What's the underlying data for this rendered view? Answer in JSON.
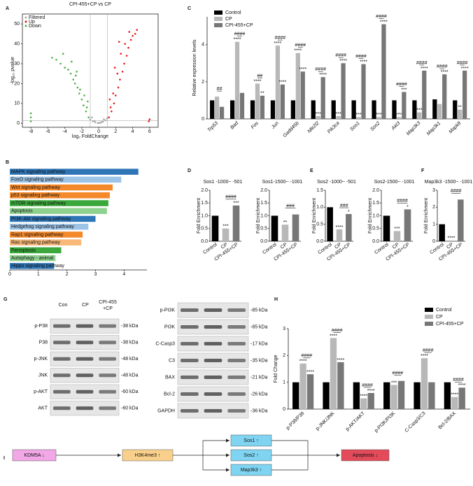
{
  "panel_labels": [
    "A",
    "B",
    "C",
    "D",
    "E",
    "F",
    "G",
    "H",
    "I"
  ],
  "chart_data": [
    {
      "type": "scatter",
      "title": "CPI-455+CP vs CP",
      "xlabel": "log₂ FoldChange",
      "ylabel": "-log₁₀ pvalue",
      "xlim": [
        -9,
        7
      ],
      "ylim": [
        -2,
        55
      ],
      "xticks": [
        -8,
        -6,
        -4,
        -2,
        0,
        2,
        4,
        6
      ],
      "yticks": [
        0,
        10,
        20,
        30,
        40,
        50
      ],
      "vlines": [
        -1,
        1
      ],
      "hline": 1.3,
      "legend": "upper left",
      "series": [
        {
          "name": "Filtered",
          "color": "#aaaaaa",
          "x": [
            -1,
            -0.7,
            -0.4,
            -0.1,
            0.2,
            0.5,
            0.8,
            1,
            -0.5,
            0.3,
            0,
            -0.8,
            0.6
          ],
          "y": [
            2,
            1,
            0.5,
            0.2,
            0.3,
            0.8,
            1.5,
            2.5,
            1.2,
            0.6,
            0.1,
            3,
            2
          ]
        },
        {
          "name": "Up",
          "color": "#e41a1c",
          "x": [
            1.2,
            1.5,
            1.8,
            2.0,
            2.3,
            2.5,
            2.8,
            3.0,
            3.3,
            3.5,
            3.8,
            4.0,
            4.3,
            4.5,
            1.4,
            1.7,
            2.2,
            2.6,
            3.1,
            3.6,
            1.3,
            1.9,
            2.4,
            5.9,
            6.0
          ],
          "y": [
            3,
            6,
            10,
            14,
            18,
            22,
            26,
            30,
            34,
            38,
            42,
            44,
            45,
            47,
            8,
            15,
            25,
            35,
            40,
            46,
            12,
            28,
            41,
            1,
            2
          ]
        },
        {
          "name": "Down",
          "color": "#4daf4a",
          "x": [
            -1.2,
            -1.5,
            -1.8,
            -2.0,
            -2.3,
            -2.5,
            -2.8,
            -3.0,
            -3.3,
            -3.6,
            -4.0,
            -4.5,
            -5.0,
            -5.5,
            -1.4,
            -1.7,
            -2.2,
            -2.7,
            -3.2,
            -4.2,
            -8,
            -8,
            -8,
            -1.3,
            -2.6
          ],
          "y": [
            3,
            6,
            9,
            12,
            15,
            18,
            20,
            22,
            25,
            27,
            28,
            30,
            32,
            33,
            8,
            14,
            17,
            24,
            31,
            35,
            1,
            3,
            5,
            11,
            26
          ]
        }
      ]
    },
    {
      "type": "barh",
      "categories": [
        "MAPK signaling pathway",
        "FoxO signaling pathway",
        "Wnt signaling pathway",
        "p53 signaling pathway",
        "mTOR signaling pathway",
        "Apoptosis",
        "PI3K-Akt signaling pathway",
        "Hedgehog signaling pathway",
        "Rap1 signaling pathway",
        "Ras signaling pathway",
        "Ferroptosis",
        "Autophagy - animal",
        "Hippo signaling pathway"
      ],
      "values": [
        4.5,
        3.9,
        3.6,
        3.5,
        3.45,
        3.4,
        3.0,
        2.75,
        2.55,
        2.5,
        1.8,
        1.6,
        1.55
      ],
      "colors": [
        "#2e75b6",
        "#9dc3e6",
        "#f4892b",
        "#f4892b",
        "#3aa83a",
        "#8fd18f",
        "#2e75b6",
        "#9dc3e6",
        "#f4892b",
        "#f8b878",
        "#3aa83a",
        "#8fd18f",
        "#2e75b6"
      ],
      "xlim": [
        0,
        4.8
      ],
      "xticks": [
        0,
        1,
        2,
        3,
        4
      ]
    },
    {
      "type": "grouped_bar",
      "ylabel": "Relative expression levels",
      "ylim": [
        0,
        5.5
      ],
      "yticks": [
        0,
        2,
        4
      ],
      "legend": "upper left",
      "italic_categories": true,
      "categories": [
        "Trp53",
        "Bad",
        "Fos",
        "Jun",
        "Gadd45b",
        "Nfe2l2",
        "Pik3ca",
        "Sos1",
        "Sos2",
        "Akt3",
        "Map3k3",
        "Map3k1",
        "Mapk8"
      ],
      "series": [
        {
          "name": "Control",
          "color": "#000000",
          "values": [
            1,
            1,
            1,
            1,
            1,
            1,
            1,
            1,
            1,
            1,
            1,
            1.05,
            1
          ],
          "annotations": [
            null,
            null,
            null,
            null,
            null,
            null,
            null,
            null,
            null,
            null,
            null,
            null,
            null
          ]
        },
        {
          "name": "CP",
          "color": "#b8b8b8",
          "values": [
            1.2,
            4.15,
            1.9,
            3.95,
            3.55,
            0.15,
            0.15,
            0.1,
            0.1,
            0.1,
            0.35,
            0.8,
            0.5
          ],
          "annotations": [
            null,
            "****",
            "****",
            "****",
            "****",
            "***",
            "***",
            "***",
            "***",
            "****",
            "***",
            null,
            "**"
          ]
        },
        {
          "name": "CPI-455+CP",
          "color": "#777777",
          "values": [
            0.65,
            1.4,
            1.25,
            1.85,
            2.55,
            2.25,
            3.0,
            2.95,
            5.1,
            1.45,
            2.6,
            2.4,
            2.6
          ],
          "annotations": [
            null,
            null,
            "**",
            "****",
            "****",
            "****",
            "****",
            "****",
            "****",
            "***",
            "****",
            "****",
            "****"
          ]
        }
      ],
      "pair_annotations": [
        "##",
        "####",
        "##",
        "####",
        "####",
        "####",
        "####",
        "####",
        "####",
        "####",
        "####",
        "####",
        "####"
      ]
    },
    {
      "type": "bar",
      "title": "Sos1 -1000~ -501",
      "ylabel": "Fold Enrichment",
      "categories": [
        "Control",
        "CP",
        "CPI-455+CP"
      ],
      "values": [
        1,
        0.5,
        1.4
      ],
      "colors": [
        "#000000",
        "#b8b8b8",
        "#777777"
      ],
      "annotations": [
        null,
        "***",
        "***"
      ],
      "bracket": "####",
      "ylim": [
        0,
        2
      ],
      "yticks": [
        {
          "value": 0,
          "label": "0.0"
        },
        0.5,
        {
          "value": 1,
          "label": "1.0"
        },
        1.5,
        {
          "value": 2,
          "label": "2.0"
        }
      ]
    },
    {
      "type": "bar",
      "title": "Sos1-1500~ -1001",
      "ylabel": "Fold Enrichment",
      "categories": [
        "Control",
        "CP",
        "CPI-455+CP"
      ],
      "values": [
        1,
        0.65,
        1.05
      ],
      "colors": [
        "#000000",
        "#b8b8b8",
        "#777777"
      ],
      "annotations": [
        null,
        "**",
        null
      ],
      "bracket": "###",
      "ylim": [
        0,
        2
      ],
      "yticks": [
        {
          "value": 0,
          "label": "0.0"
        },
        0.5,
        {
          "value": 1,
          "label": "1.0"
        },
        1.5,
        {
          "value": 2,
          "label": "2.0"
        }
      ]
    },
    {
      "type": "bar",
      "title": "Sos2 -1000~ -501",
      "ylabel": "Fold Enrichment",
      "categories": [
        "Control",
        "CP",
        "CPI-455+CP"
      ],
      "values": [
        1,
        0.35,
        0.8
      ],
      "colors": [
        "#000000",
        "#b8b8b8",
        "#777777"
      ],
      "annotations": [
        null,
        "****",
        "*"
      ],
      "bracket": "###",
      "ylim": [
        0,
        1.5
      ],
      "yticks": [
        {
          "value": 0,
          "label": "0.0"
        },
        0.5,
        {
          "value": 1,
          "label": "1.0"
        },
        1.5
      ]
    },
    {
      "type": "bar",
      "title": "Sos2-1500~ -1001",
      "ylabel": "Fold Enrichment",
      "categories": [
        "Control",
        "CP",
        "CPI-455+CP"
      ],
      "values": [
        1,
        0.4,
        1.25
      ],
      "colors": [
        "#000000",
        "#b8b8b8",
        "#777777"
      ],
      "annotations": [
        null,
        "***",
        "*"
      ],
      "bracket": "####",
      "ylim": [
        0,
        2
      ],
      "yticks": [
        {
          "value": 0,
          "label": "0.0"
        },
        0.5,
        {
          "value": 1,
          "label": "1.0"
        },
        1.5,
        {
          "value": 2,
          "label": "2.0"
        }
      ]
    },
    {
      "type": "bar",
      "title": "Map3k3 -1500~ -1001",
      "ylabel": "Fold Enrichment",
      "categories": [
        "Control",
        "CP",
        "CPI-455+CP"
      ],
      "values": [
        1,
        0.05,
        2.45
      ],
      "colors": [
        "#000000",
        "#b8b8b8",
        "#777777"
      ],
      "annotations": [
        null,
        "****",
        null
      ],
      "bracket": "####",
      "ylim": [
        0,
        3
      ],
      "yticks": [
        0,
        1,
        2,
        3
      ]
    },
    {
      "type": "grouped_bar",
      "ylabel": "Fold Change",
      "ylim": [
        0,
        3
      ],
      "yticks": [
        0,
        1,
        2,
        3
      ],
      "legend": "upper right",
      "italic_categories": false,
      "categories": [
        "p-P38/P38",
        "p-JNK/JNK",
        "p-AKT/AKT",
        "p-PI3K/PI3K",
        "C-Casp3/C3",
        "Bcl-2/BAX"
      ],
      "series": [
        {
          "name": "Control",
          "color": "#000000",
          "values": [
            1,
            1,
            1,
            1,
            1,
            1
          ],
          "annotations": [
            null,
            null,
            null,
            null,
            null,
            null
          ]
        },
        {
          "name": "CP",
          "color": "#b8b8b8",
          "values": [
            1.7,
            2.65,
            0.4,
            0.9,
            1.9,
            0.45
          ],
          "annotations": [
            "****",
            "****",
            "****",
            "***",
            "****",
            "****"
          ]
        },
        {
          "name": "CPI-455+CP",
          "color": "#777777",
          "values": [
            1.3,
            1.75,
            0.6,
            1.05,
            1.0,
            0.8
          ],
          "annotations": [
            "****",
            "****",
            "****",
            null,
            null,
            "****"
          ]
        }
      ],
      "pair_annotations": [
        "####",
        "####",
        "####",
        "####",
        "####",
        "####"
      ]
    }
  ],
  "blot": {
    "lanes": [
      [
        "Con"
      ],
      [
        "CP"
      ],
      [
        "CPI-455",
        "+CP"
      ]
    ],
    "left": [
      {
        "label": "p-P38",
        "size": "-38 kDa"
      },
      {
        "label": "P38",
        "size": "-38 kDa"
      },
      {
        "label": "p-JNK",
        "size": "-48 kDa"
      },
      {
        "label": "JNK",
        "size": "-48 kDa"
      },
      {
        "label": "p-AKT",
        "size": "-60 kDa"
      },
      {
        "label": "AKT",
        "size": "-60 kDa"
      }
    ],
    "right": [
      {
        "label": "p-PI3K",
        "size": "-85 kDa"
      },
      {
        "label": "PI3K",
        "size": "-85 kDa"
      },
      {
        "label": "C-Casp3",
        "size": "-17 kDa"
      },
      {
        "label": "C3",
        "size": "-35 kDa"
      },
      {
        "label": "BAX",
        "size": "-21 kDa"
      },
      {
        "label": "Bcl-2",
        "size": "-26 kDa"
      },
      {
        "label": "GAPDH",
        "size": "-36 kDa"
      }
    ]
  },
  "diagram": {
    "nodes": [
      "KDM5A ↓",
      "H3K4me3 ↑",
      "Sos1 ↑",
      "Sos2 ↑",
      "Map3k3 ↑",
      "Apoptosis ↓"
    ]
  }
}
